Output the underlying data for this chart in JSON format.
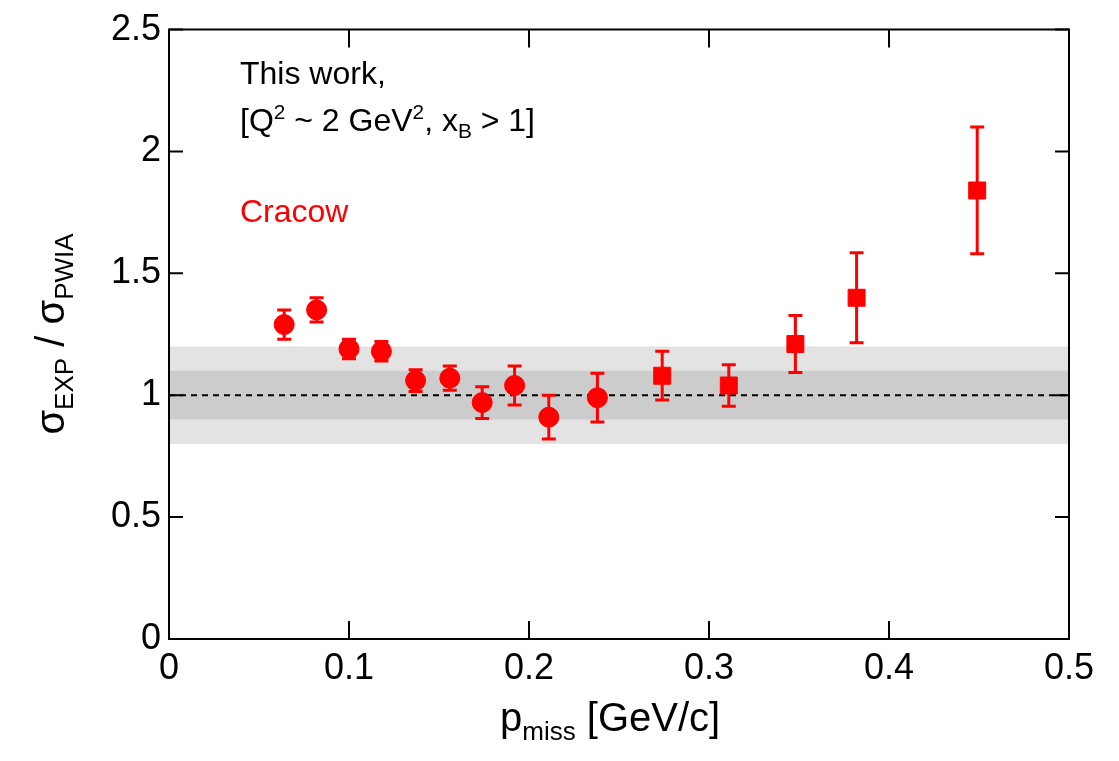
{
  "chart_data": {
    "type": "scatter",
    "xlabel": "p$_{miss}$ [GeV/c]",
    "ylabel": "σ$_{EXP}$ / σ$_{PWIA}$",
    "annotations": [
      "This work,",
      "[Q$^{2}$ ~ 2 GeV$^{2}$, x$_{B}$ > 1]",
      "Cracow"
    ],
    "series": [
      {
        "color": "#ff0000",
        "marker": "circle",
        "x": [
          0.064,
          0.082,
          0.1,
          0.118,
          0.137,
          0.156,
          0.174,
          0.192,
          0.211,
          0.238
        ],
        "values": [
          1.29,
          1.35,
          1.19,
          1.18,
          1.06,
          1.07,
          0.97,
          1.04,
          0.91,
          0.99
        ],
        "errors": [
          0.06,
          0.05,
          0.04,
          0.04,
          0.045,
          0.05,
          0.065,
          0.08,
          0.09,
          0.1
        ]
      },
      {
        "color": "#ff0000",
        "marker": "square",
        "x": [
          0.274,
          0.311,
          0.348,
          0.382,
          0.449
        ],
        "values": [
          1.08,
          1.04,
          1.21,
          1.4,
          1.84
        ],
        "errors": [
          0.1,
          0.085,
          0.117,
          0.185,
          0.26
        ]
      }
    ],
    "xlim": [
      0,
      0.5
    ],
    "xticks": [
      0,
      0.1,
      0.2,
      0.3,
      0.4,
      0.5
    ],
    "ylim": [
      0,
      2.5
    ],
    "yticks": [
      0,
      0.5,
      1,
      1.5,
      2,
      2.5
    ],
    "bands": [
      {
        "axis": "y",
        "from": 0.8,
        "to": 1.2,
        "color": "#e3e3e3"
      },
      {
        "axis": "y",
        "from": 0.9,
        "to": 1.1,
        "color": "#cccccc"
      }
    ],
    "ref_lines": [
      {
        "axis": "y",
        "value": 1,
        "color": "#000000",
        "line_style": "dashed"
      }
    ],
    "legend": false
  }
}
